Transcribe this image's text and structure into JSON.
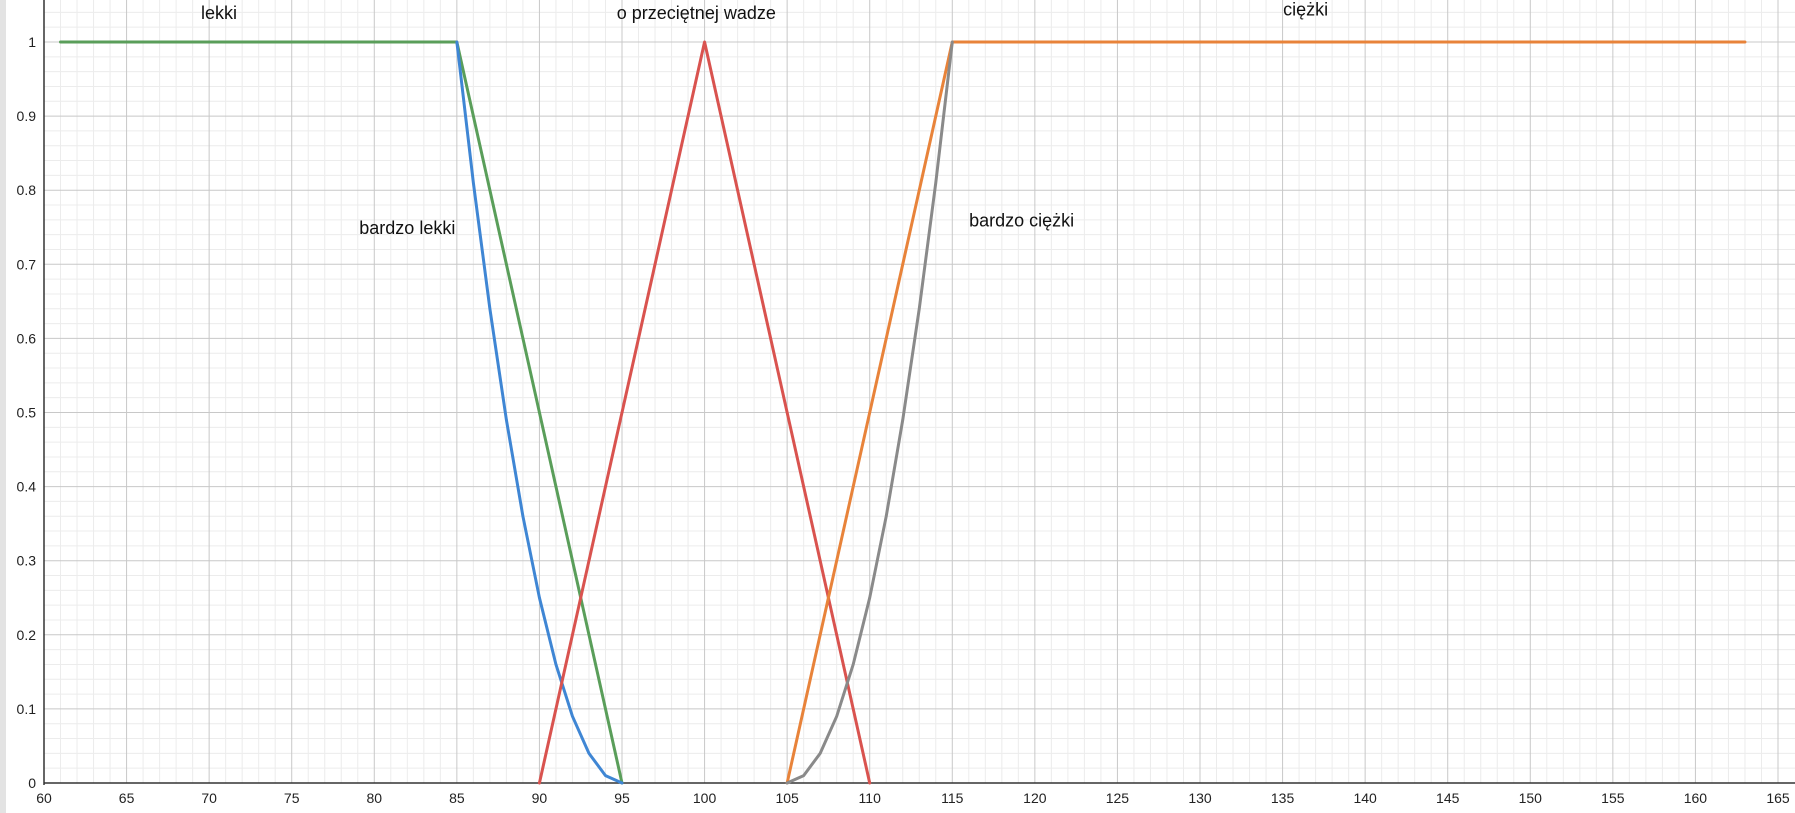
{
  "chart_data": {
    "type": "line",
    "title": "",
    "xlabel": "",
    "ylabel": "",
    "xlim": [
      60,
      165
    ],
    "ylim": [
      0,
      1
    ],
    "x_ticks": [
      60,
      65,
      70,
      75,
      80,
      85,
      90,
      95,
      100,
      105,
      110,
      115,
      120,
      125,
      130,
      135,
      140,
      145,
      150,
      155,
      160,
      165
    ],
    "y_ticks": [
      0,
      0.1,
      0.2,
      0.3,
      0.4,
      0.5,
      0.6,
      0.7,
      0.8,
      0.9,
      1
    ],
    "grid": true,
    "legend": "none",
    "series": [
      {
        "name": "lekki",
        "color": "#5a9e5a",
        "x": [
          61,
          85,
          95
        ],
        "y": [
          1,
          1,
          0
        ]
      },
      {
        "name": "bardzo lekki",
        "color": "#3f86d4",
        "x": [
          85,
          86,
          87,
          88,
          89,
          90,
          91,
          92,
          93,
          94,
          95
        ],
        "y": [
          1,
          0.81,
          0.64,
          0.49,
          0.36,
          0.25,
          0.16,
          0.09,
          0.04,
          0.01,
          0
        ]
      },
      {
        "name": "o przeciętnej wadze",
        "color": "#d9534f",
        "x": [
          90,
          100,
          110
        ],
        "y": [
          0,
          1,
          0
        ]
      },
      {
        "name": "ciężki",
        "color": "#e8833a",
        "x": [
          105,
          115,
          163
        ],
        "y": [
          0,
          1,
          1
        ]
      },
      {
        "name": "bardzo ciężki",
        "color": "#8a8a8a",
        "x": [
          105,
          106,
          107,
          108,
          109,
          110,
          111,
          112,
          113,
          114,
          115
        ],
        "y": [
          0,
          0.01,
          0.04,
          0.09,
          0.16,
          0.25,
          0.36,
          0.49,
          0.64,
          0.81,
          1
        ]
      }
    ],
    "annotations": [
      {
        "text": "lekki",
        "x": 70.6,
        "y": 1.031
      },
      {
        "text": "o przeciętnej wadze",
        "x": 99.5,
        "y": 1.031
      },
      {
        "text": "ciężki",
        "x": 136.4,
        "y": 1.036
      },
      {
        "text": "bardzo lekki",
        "x": 82.0,
        "y": 0.741
      },
      {
        "text": "bardzo ciężki",
        "x": 119.2,
        "y": 0.751
      }
    ]
  }
}
